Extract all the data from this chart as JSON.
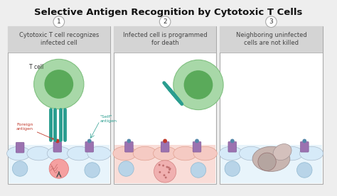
{
  "title": "Selective Antigen Recognition by Cytotoxic T Cells",
  "title_fontsize": 9.5,
  "bg_color": "#eeeeee",
  "panel_bg": "#ffffff",
  "header_bg": "#d4d4d4",
  "panel_border": "#aaaaaa",
  "panels": [
    {
      "number": "1",
      "header": "Cytotoxic T cell recognizes\ninfected cell"
    },
    {
      "number": "2",
      "header": "Infected cell is programmed\nfor death"
    },
    {
      "number": "3",
      "header": "Neighboring uninfected\ncells are not killed"
    }
  ],
  "tcell_outer_color": "#a8d8a8",
  "tcell_inner_color": "#5aaa5a",
  "tcell_receptor_color": "#2a9d8f",
  "cell_surface_color": "#d6eaf8",
  "cell_body_color": "#e8f4fb",
  "infected_cell_color": "#f5cac3",
  "infected_body_color": "#f9ddd8",
  "dead_cell_color": "#c8b5b0",
  "dead_body_color": "#d4c0bc",
  "mhc_color": "#9b72b0",
  "foreign_antigen_color": "#c0392b",
  "self_antigen_color": "#5588aa",
  "label_color_foreign": "#c0392b",
  "label_color_self": "#2a9d8f",
  "label_color_tcell": "#333333",
  "arrow_color": "#555555"
}
